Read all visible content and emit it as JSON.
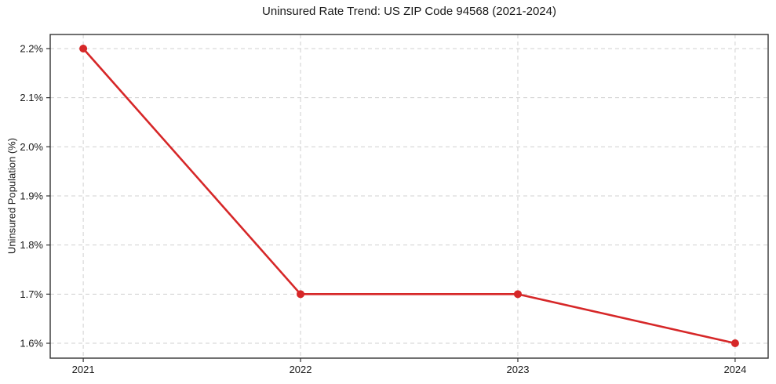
{
  "figure": {
    "title": "Uninsured Rate Trend: US ZIP Code 94568 (2021-2024)"
  },
  "chart_data": {
    "type": "line",
    "title": "Uninsured Rate Trend: US ZIP Code 94568 (2021-2024)",
    "xlabel": "",
    "ylabel": "Uninsured Population (%)",
    "x": [
      2021,
      2022,
      2023,
      2024
    ],
    "x_tick_labels": [
      "2021",
      "2022",
      "2023",
      "2024"
    ],
    "values": [
      2.2,
      1.7,
      1.7,
      1.6
    ],
    "y_ticks": [
      1.6,
      1.7,
      1.8,
      1.9,
      2.0,
      2.1,
      2.2
    ],
    "y_tick_labels": [
      "1.6%",
      "1.7%",
      "1.8%",
      "1.9%",
      "2.0%",
      "2.1%",
      "2.2%"
    ],
    "xlim": [
      2020.848,
      2024.152
    ],
    "ylim": [
      1.5697,
      2.2287
    ],
    "grid": true,
    "grid_style": "dashed",
    "legend": "none",
    "style": {
      "line_color": "#d62728",
      "marker": "circle",
      "marker_color": "#d62728",
      "marker_radius": 5,
      "line_width": 2.6,
      "grid_color": "#d0d0d0",
      "spine_color": "#333333",
      "text_color": "#1a1a1a",
      "background": "#ffffff"
    }
  }
}
